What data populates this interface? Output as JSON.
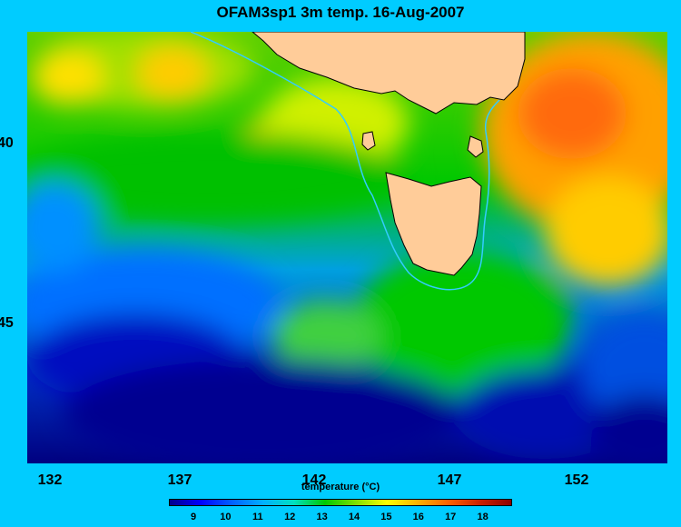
{
  "title": "OFAM3sp1 3m temp. 16-Aug-2007",
  "y_axis": {
    "labels": [
      "40",
      "45"
    ]
  },
  "x_axis": {
    "labels": [
      "132",
      "137",
      "142",
      "147",
      "152"
    ]
  },
  "colorbar": {
    "title": "temperature (°C)",
    "tick_labels": [
      "9",
      "10",
      "11",
      "12",
      "13",
      "14",
      "15",
      "16",
      "17",
      "18"
    ],
    "colors": [
      "#00008b",
      "#0000ff",
      "#0060ff",
      "#00b0ff",
      "#00e0c0",
      "#00c800",
      "#80e000",
      "#ffff00",
      "#ffb000",
      "#ff6000",
      "#cc2000",
      "#8b0000"
    ]
  },
  "colors": {
    "background": "#00ccff",
    "land": "#ffcc99",
    "current_line": "#33ccff"
  }
}
